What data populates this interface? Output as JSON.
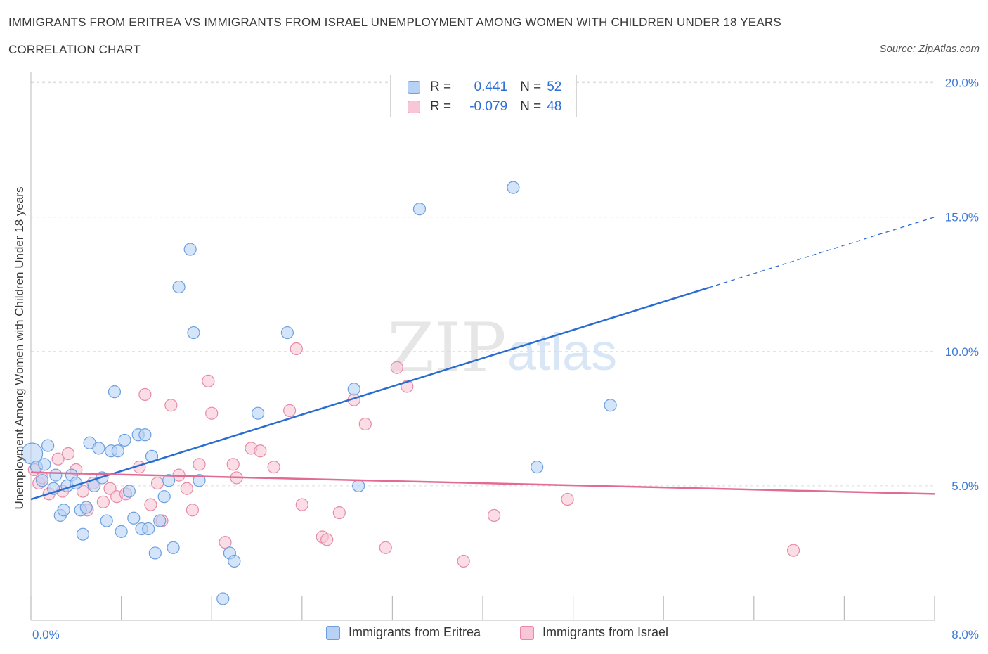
{
  "header": {
    "title": "IMMIGRANTS FROM ERITREA VS IMMIGRANTS FROM ISRAEL UNEMPLOYMENT AMONG WOMEN WITH CHILDREN UNDER 18 YEARS",
    "subtitle": "CORRELATION CHART",
    "source": "Source: ZipAtlas.com"
  },
  "watermark": {
    "zip": "ZIP",
    "atlas": "atlas"
  },
  "legend_top": {
    "r_label": "R =",
    "n_label": "N =",
    "rows": [
      {
        "r": "0.441",
        "n": "52"
      },
      {
        "r": "-0.079",
        "n": "48"
      }
    ]
  },
  "colors": {
    "eritrea_fill": "#b7d2f5",
    "eritrea_stroke": "#6c9fe0",
    "eritrea_line": "#2a6dd0",
    "israel_fill": "#f8c6d6",
    "israel_stroke": "#e68aa8",
    "israel_line": "#e26a93",
    "grid": "#dcdcdc",
    "tick_text": "#3d7ad6"
  },
  "chart_data": {
    "type": "scatter",
    "title": "IMMIGRANTS FROM ERITREA VS IMMIGRANTS FROM ISRAEL UNEMPLOYMENT AMONG WOMEN WITH CHILDREN UNDER 18 YEARS",
    "subtitle": "CORRELATION CHART",
    "xlabel": "",
    "ylabel": "Unemployment Among Women with Children Under 18 years",
    "xlim": [
      0,
      8
    ],
    "ylim": [
      0,
      20
    ],
    "x_tick_labels": [
      "0.0%",
      "8.0%"
    ],
    "y_ticks": [
      5,
      10,
      15,
      20
    ],
    "y_tick_labels": [
      "5.0%",
      "10.0%",
      "15.0%",
      "20.0%"
    ],
    "grid": true,
    "legend": "bottom",
    "series": [
      {
        "name": "Immigrants from Eritrea",
        "points": [
          [
            0.01,
            6.2
          ],
          [
            0.05,
            5.7
          ],
          [
            0.1,
            5.2
          ],
          [
            0.12,
            5.8
          ],
          [
            0.15,
            6.5
          ],
          [
            0.2,
            4.9
          ],
          [
            0.22,
            5.4
          ],
          [
            0.26,
            3.9
          ],
          [
            0.29,
            4.1
          ],
          [
            0.32,
            5.0
          ],
          [
            0.36,
            5.4
          ],
          [
            0.4,
            5.1
          ],
          [
            0.44,
            4.1
          ],
          [
            0.46,
            3.2
          ],
          [
            0.49,
            4.2
          ],
          [
            0.52,
            6.6
          ],
          [
            0.56,
            5.0
          ],
          [
            0.6,
            6.4
          ],
          [
            0.63,
            5.3
          ],
          [
            0.67,
            3.7
          ],
          [
            0.71,
            6.3
          ],
          [
            0.74,
            8.5
          ],
          [
            0.77,
            6.3
          ],
          [
            0.8,
            3.3
          ],
          [
            0.83,
            6.7
          ],
          [
            0.87,
            4.8
          ],
          [
            0.91,
            3.8
          ],
          [
            0.95,
            6.9
          ],
          [
            0.98,
            3.4
          ],
          [
            1.01,
            6.9
          ],
          [
            1.04,
            3.4
          ],
          [
            1.07,
            6.1
          ],
          [
            1.1,
            2.5
          ],
          [
            1.14,
            3.7
          ],
          [
            1.18,
            4.6
          ],
          [
            1.22,
            5.2
          ],
          [
            1.26,
            2.7
          ],
          [
            1.31,
            12.4
          ],
          [
            1.41,
            13.8
          ],
          [
            1.44,
            10.7
          ],
          [
            1.49,
            5.2
          ],
          [
            1.7,
            0.8
          ],
          [
            1.76,
            2.5
          ],
          [
            1.8,
            2.2
          ],
          [
            2.01,
            7.7
          ],
          [
            2.27,
            10.7
          ],
          [
            2.86,
            8.6
          ],
          [
            2.9,
            5.0
          ],
          [
            3.44,
            15.3
          ],
          [
            4.27,
            16.1
          ],
          [
            4.48,
            5.7
          ],
          [
            5.13,
            8.0
          ]
        ]
      },
      {
        "name": "Immigrants from Israel",
        "points": [
          [
            0.03,
            5.6
          ],
          [
            0.07,
            5.1
          ],
          [
            0.1,
            5.3
          ],
          [
            0.16,
            4.7
          ],
          [
            0.24,
            6.0
          ],
          [
            0.28,
            4.8
          ],
          [
            0.33,
            6.2
          ],
          [
            0.4,
            5.6
          ],
          [
            0.46,
            4.8
          ],
          [
            0.5,
            4.1
          ],
          [
            0.55,
            5.1
          ],
          [
            0.64,
            4.4
          ],
          [
            0.7,
            4.9
          ],
          [
            0.76,
            4.6
          ],
          [
            0.84,
            4.7
          ],
          [
            0.96,
            5.7
          ],
          [
            1.01,
            8.4
          ],
          [
            1.06,
            4.3
          ],
          [
            1.12,
            5.1
          ],
          [
            1.16,
            3.7
          ],
          [
            1.24,
            8.0
          ],
          [
            1.31,
            5.4
          ],
          [
            1.38,
            4.9
          ],
          [
            1.43,
            4.1
          ],
          [
            1.49,
            5.8
          ],
          [
            1.57,
            8.9
          ],
          [
            1.6,
            7.7
          ],
          [
            1.72,
            2.9
          ],
          [
            1.79,
            5.8
          ],
          [
            1.82,
            5.3
          ],
          [
            1.95,
            6.4
          ],
          [
            2.03,
            6.3
          ],
          [
            2.15,
            5.7
          ],
          [
            2.29,
            7.8
          ],
          [
            2.35,
            10.1
          ],
          [
            2.4,
            4.3
          ],
          [
            2.58,
            3.1
          ],
          [
            2.62,
            3.0
          ],
          [
            2.73,
            4.0
          ],
          [
            2.86,
            8.2
          ],
          [
            2.96,
            7.3
          ],
          [
            3.14,
            2.7
          ],
          [
            3.24,
            9.4
          ],
          [
            3.33,
            8.7
          ],
          [
            3.83,
            2.2
          ],
          [
            4.1,
            3.9
          ],
          [
            4.75,
            4.5
          ],
          [
            6.75,
            2.6
          ]
        ]
      }
    ],
    "trendlines": [
      {
        "series": "Immigrants from Eritrea",
        "y_at_x0": 4.5,
        "y_at_x8": 15.0,
        "solid_until_x": 6.0
      },
      {
        "series": "Immigrants from Israel",
        "y_at_x0": 5.5,
        "y_at_x8": 4.7
      }
    ]
  }
}
